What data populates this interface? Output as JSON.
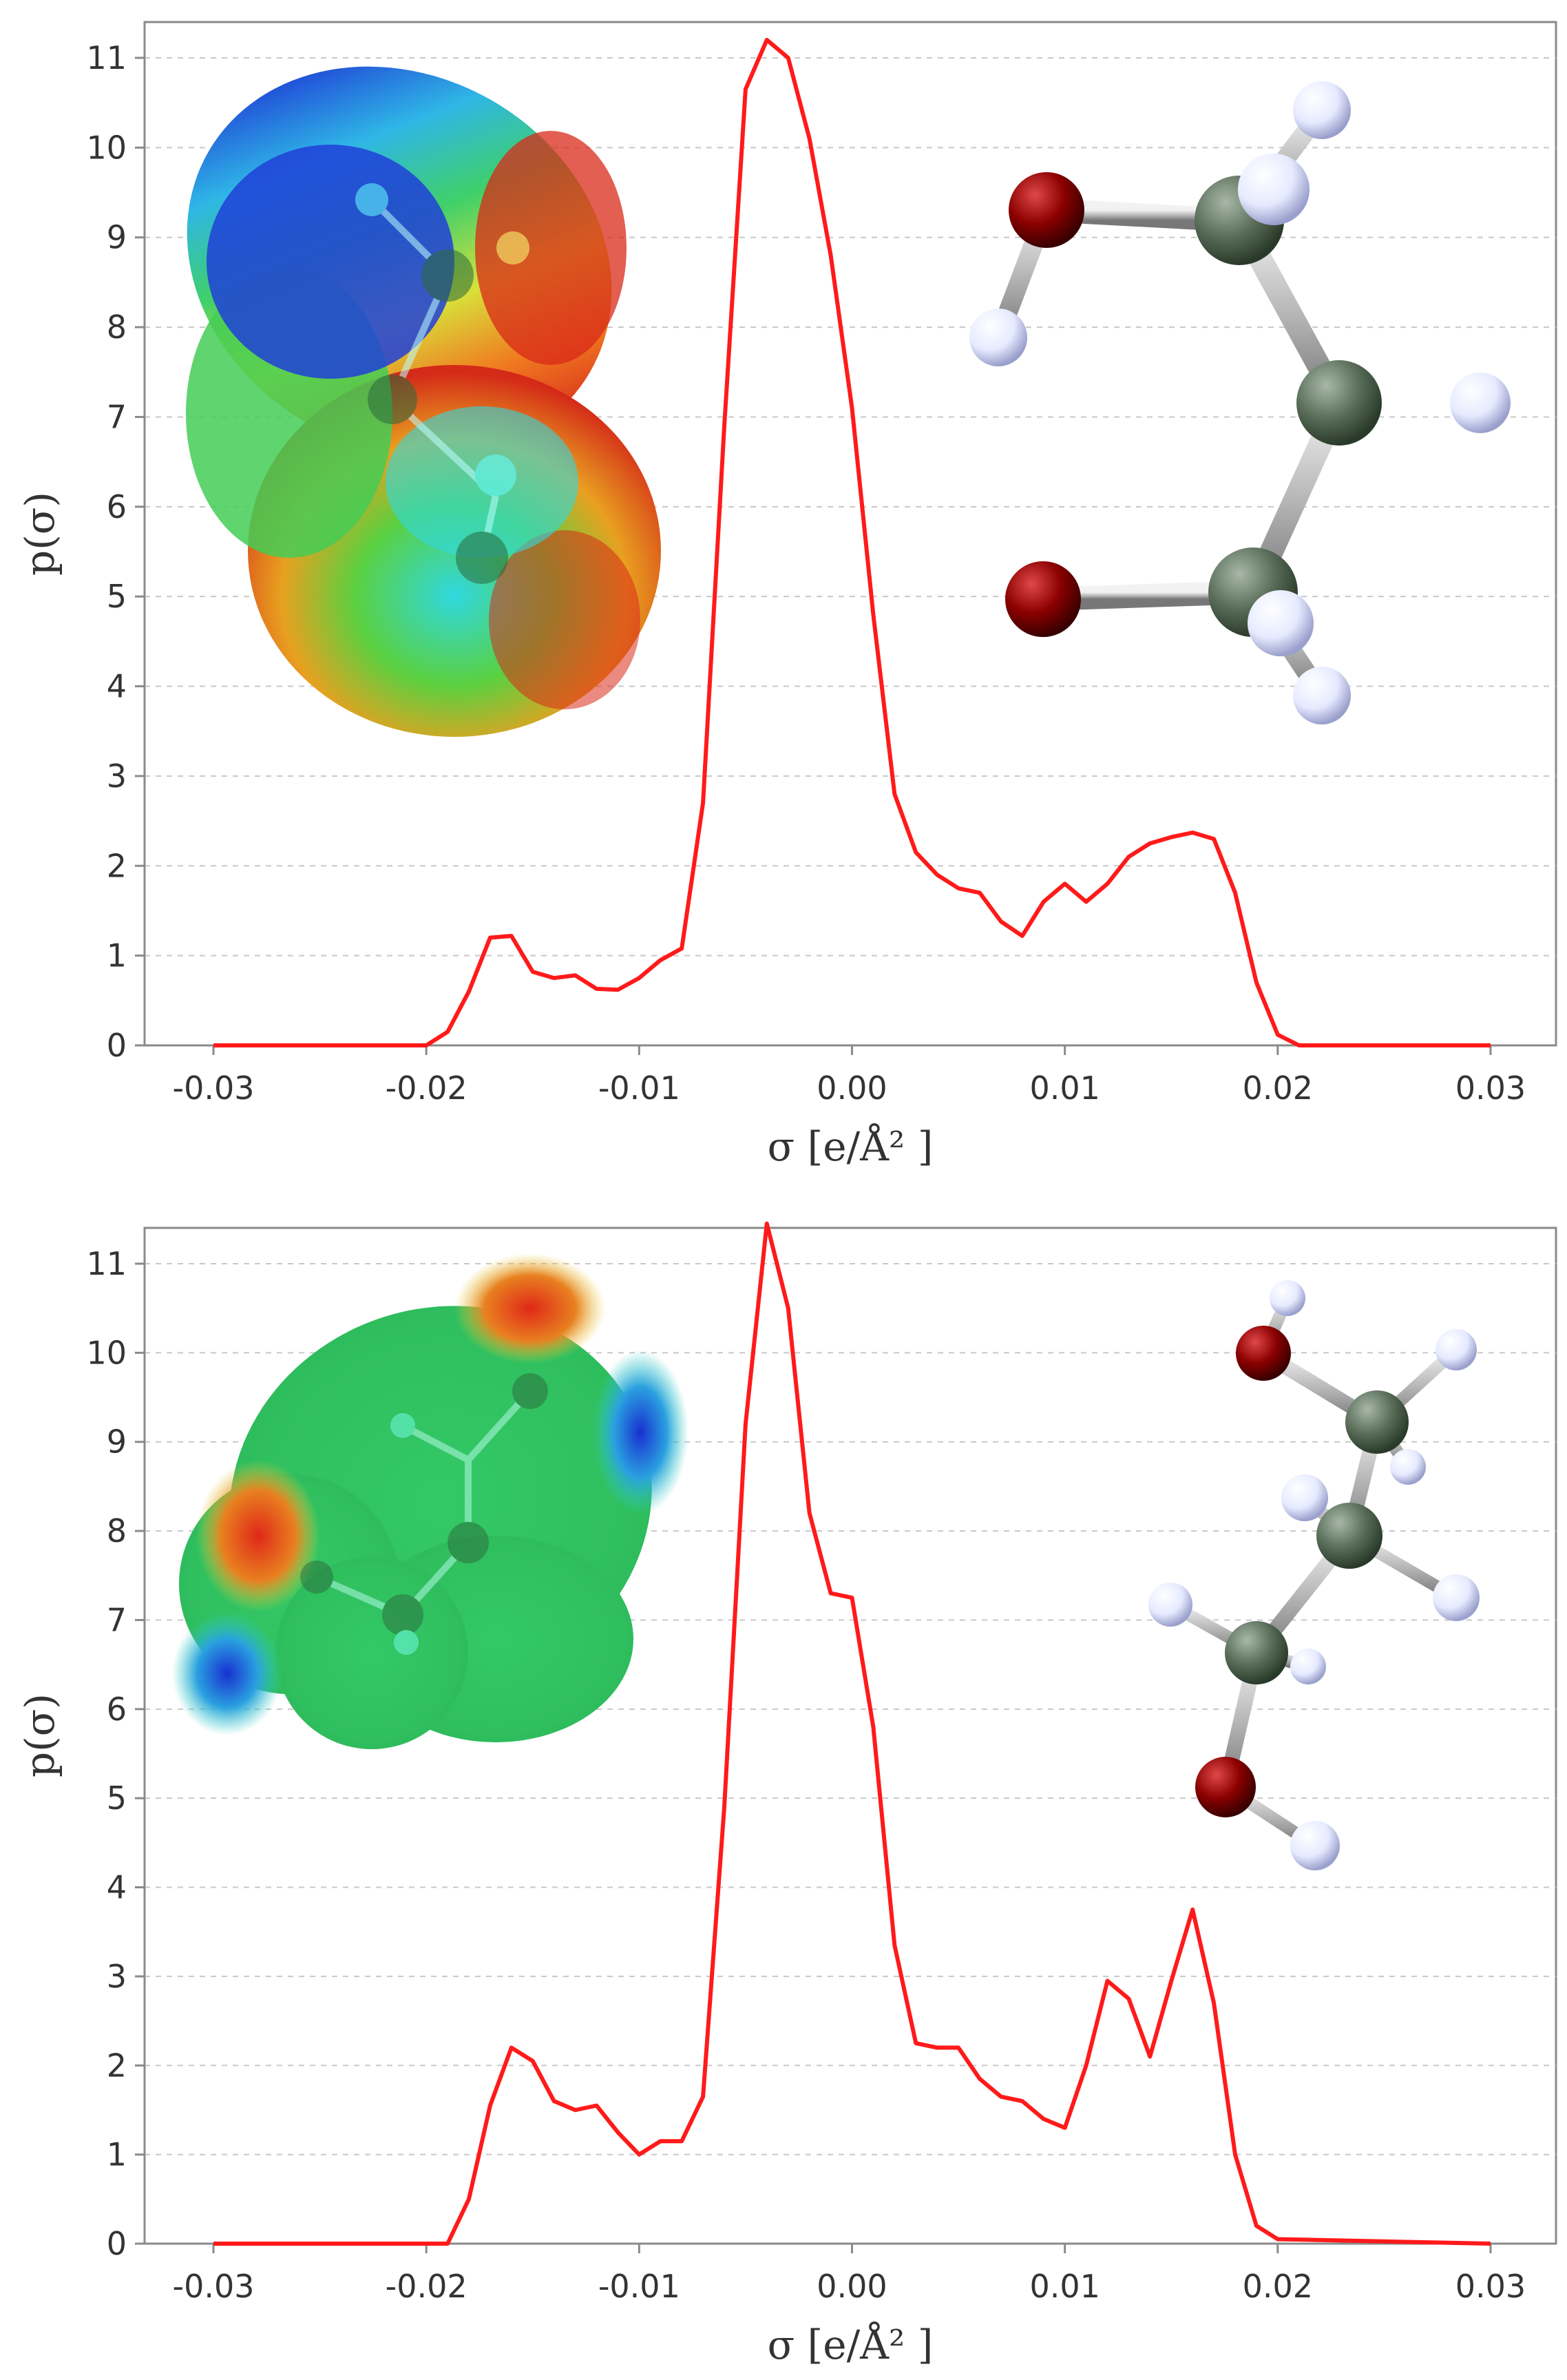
{
  "colors": {
    "series": "#ff1a1a",
    "oxygen": "#8b0000",
    "carbon": "#5a6e5a",
    "hydrogen": "#e8ecff"
  },
  "chart_data": [
    {
      "type": "line",
      "xlabel": "σ [e/Å² ]",
      "ylabel": "p(σ)",
      "xlim": [
        -0.031,
        0.0315
      ],
      "ylim": [
        0,
        11.25
      ],
      "x_ticks": [
        "-0.03",
        "-0.02",
        "-0.01",
        "0.00",
        "0.01",
        "0.02",
        "0.03"
      ],
      "y_ticks": [
        "0",
        "1",
        "2",
        "3",
        "4",
        "5",
        "6",
        "7",
        "8",
        "9",
        "10",
        "11"
      ],
      "grid": true,
      "insets": [
        "sigma-surface-image",
        "ball-and-stick-molecule-image"
      ],
      "series": [
        {
          "color": "#ff1a1a",
          "x": [
            -0.03,
            -0.02,
            -0.019,
            -0.018,
            -0.017,
            -0.016,
            -0.015,
            -0.014,
            -0.013,
            -0.012,
            -0.011,
            -0.01,
            -0.009,
            -0.008,
            -0.007,
            -0.006,
            -0.005,
            -0.004,
            -0.003,
            -0.002,
            -0.001,
            0.0,
            0.001,
            0.002,
            0.003,
            0.004,
            0.005,
            0.006,
            0.007,
            0.008,
            0.009,
            0.01,
            0.011,
            0.012,
            0.013,
            0.014,
            0.015,
            0.016,
            0.017,
            0.018,
            0.019,
            0.02,
            0.021,
            0.03
          ],
          "y": [
            0,
            0,
            0.15,
            0.6,
            1.2,
            1.22,
            0.82,
            0.75,
            0.78,
            0.63,
            0.62,
            0.75,
            0.95,
            1.08,
            2.7,
            6.9,
            10.65,
            11.2,
            11.0,
            10.1,
            8.8,
            7.1,
            4.8,
            2.8,
            2.15,
            1.9,
            1.75,
            1.7,
            1.38,
            1.22,
            1.6,
            1.8,
            1.6,
            1.8,
            2.1,
            2.25,
            2.32,
            2.37,
            2.3,
            1.7,
            0.7,
            0.12,
            0,
            0
          ]
        }
      ]
    },
    {
      "type": "line",
      "xlabel": "σ [e/Å² ]",
      "ylabel": "p(σ)",
      "xlim": [
        -0.031,
        0.0315
      ],
      "ylim": [
        0,
        11.25
      ],
      "x_ticks": [
        "-0.03",
        "-0.02",
        "-0.01",
        "0.00",
        "0.01",
        "0.02",
        "0.03"
      ],
      "y_ticks": [
        "0",
        "1",
        "2",
        "3",
        "4",
        "5",
        "6",
        "7",
        "8",
        "9",
        "10",
        "11"
      ],
      "grid": true,
      "insets": [
        "sigma-surface-image",
        "ball-and-stick-molecule-image"
      ],
      "series": [
        {
          "color": "#ff1a1a",
          "x": [
            -0.03,
            -0.019,
            -0.018,
            -0.017,
            -0.016,
            -0.015,
            -0.014,
            -0.013,
            -0.012,
            -0.011,
            -0.01,
            -0.009,
            -0.008,
            -0.007,
            -0.006,
            -0.005,
            -0.004,
            -0.003,
            -0.002,
            -0.001,
            0.0,
            0.001,
            0.002,
            0.003,
            0.004,
            0.005,
            0.006,
            0.007,
            0.008,
            0.009,
            0.01,
            0.011,
            0.012,
            0.013,
            0.014,
            0.015,
            0.016,
            0.017,
            0.018,
            0.019,
            0.02,
            0.03
          ],
          "y": [
            0,
            0,
            0.5,
            1.55,
            2.2,
            2.05,
            1.6,
            1.5,
            1.55,
            1.25,
            1.0,
            1.15,
            1.15,
            1.65,
            4.9,
            9.2,
            11.45,
            10.5,
            8.2,
            7.3,
            7.25,
            5.8,
            3.35,
            2.25,
            2.2,
            2.2,
            1.85,
            1.65,
            1.6,
            1.4,
            1.3,
            2.0,
            2.95,
            2.75,
            2.1,
            2.95,
            3.75,
            2.7,
            1.0,
            0.2,
            0.05,
            0
          ]
        }
      ]
    }
  ]
}
